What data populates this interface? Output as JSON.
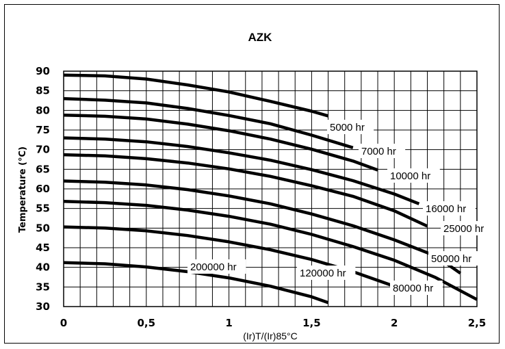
{
  "chart_data": {
    "type": "line",
    "title": "AZK",
    "xlabel": "(Ir)T/(Ir)85°C",
    "ylabel": "Temperature (°C)",
    "xlim": [
      0,
      2.5
    ],
    "ylim": [
      30,
      90
    ],
    "x_ticks": [
      "0",
      "0,5",
      "1",
      "1,5",
      "2",
      "2,5"
    ],
    "y_ticks": [
      "30",
      "35",
      "40",
      "45",
      "50",
      "55",
      "60",
      "65",
      "70",
      "75",
      "80",
      "85",
      "90"
    ],
    "grid": true,
    "series": [
      {
        "name": "5000 hr",
        "x": [
          0,
          0.25,
          0.5,
          0.75,
          1.0,
          1.25,
          1.5,
          1.6
        ],
        "y": [
          89,
          88.8,
          88,
          86.5,
          84.7,
          82.3,
          79.8,
          78.6
        ]
      },
      {
        "name": "7000 hr",
        "x": [
          0,
          0.25,
          0.5,
          0.75,
          1.0,
          1.25,
          1.5,
          1.75
        ],
        "y": [
          83,
          82.6,
          81.9,
          80.5,
          78.7,
          76.6,
          73.7,
          70.5
        ]
      },
      {
        "name": "10000 hr",
        "x": [
          0,
          0.25,
          0.5,
          0.75,
          1.0,
          1.25,
          1.5,
          1.75,
          1.9
        ],
        "y": [
          78.8,
          78.5,
          77.8,
          76.5,
          74.8,
          72.7,
          70.1,
          67.1,
          64.8
        ]
      },
      {
        "name": "16000 hr",
        "x": [
          0,
          0.25,
          0.5,
          0.75,
          1.0,
          1.25,
          1.5,
          1.75,
          2.0,
          2.15
        ],
        "y": [
          73,
          72.7,
          72.0,
          70.8,
          69.2,
          67.3,
          64.9,
          62.1,
          58.7,
          56.2
        ]
      },
      {
        "name": "25000 hr",
        "x": [
          0,
          0.25,
          0.5,
          0.75,
          1.0,
          1.25,
          1.5,
          1.75,
          2.0,
          2.2
        ],
        "y": [
          68.7,
          68.4,
          67.7,
          66.6,
          65.1,
          63.2,
          60.8,
          58.1,
          54.4,
          50.5
        ]
      },
      {
        "name": "50000 hr",
        "x": [
          0,
          0.25,
          0.5,
          0.75,
          1.0,
          1.25,
          1.5,
          1.75,
          2.0,
          2.25,
          2.4
        ],
        "y": [
          62,
          61.7,
          61.0,
          59.8,
          58.2,
          56.2,
          53.6,
          50.6,
          47.0,
          42.9,
          38.5
        ]
      },
      {
        "name": "80000 hr",
        "x": [
          0,
          0.25,
          0.5,
          0.75,
          1.0,
          1.25,
          1.5,
          1.75,
          2.0,
          2.25,
          2.5
        ],
        "y": [
          56.8,
          56.5,
          55.8,
          54.6,
          53.0,
          51.0,
          48.4,
          45.3,
          41.8,
          37.4,
          31.8
        ]
      },
      {
        "name": "120000 hr",
        "x": [
          0,
          0.25,
          0.5,
          0.75,
          1.0,
          1.25,
          1.5,
          1.75,
          2.0,
          2.1
        ],
        "y": [
          50.3,
          50.0,
          49.3,
          48.1,
          46.5,
          44.5,
          42.0,
          38.9,
          35.2,
          33.3
        ]
      },
      {
        "name": "200000 hr",
        "x": [
          0,
          0.25,
          0.5,
          0.75,
          1.0,
          1.25,
          1.5,
          1.6
        ],
        "y": [
          41.2,
          40.9,
          40.1,
          38.9,
          37.3,
          35.2,
          32.5,
          31.0
        ]
      }
    ]
  }
}
